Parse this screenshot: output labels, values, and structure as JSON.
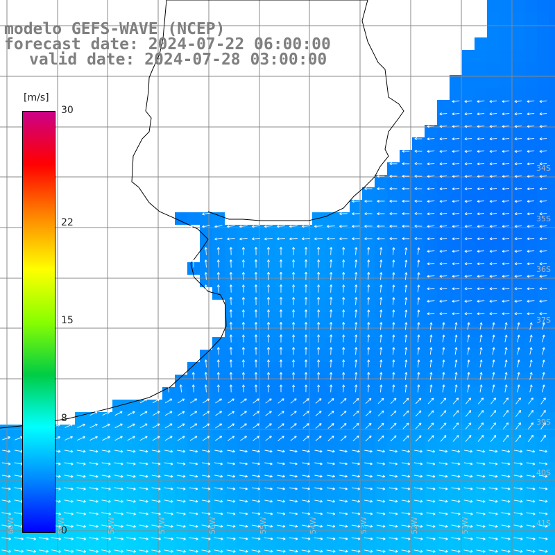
{
  "header": {
    "model": "modelo GEFS-WAVE (NCEP)",
    "forecast": "forecast date: 2024-07-22 06:00:00",
    "valid": "valid date: 2024-07-28 03:00:00"
  },
  "colorbar": {
    "unit": "[m/s]",
    "min": 0,
    "max": 30,
    "ticks": [
      "30",
      "22",
      "15",
      "8",
      "0"
    ],
    "tick_values": [
      30,
      22,
      15,
      8,
      0
    ],
    "colors": [
      "#0000ff",
      "#0088ff",
      "#00ffff",
      "#00cc44",
      "#88ff00",
      "#ffff00",
      "#ff8800",
      "#ff0000",
      "#cc0088"
    ]
  },
  "map": {
    "latitude_labels": [
      "34S",
      "35S",
      "36S",
      "37S",
      "39S",
      "40S",
      "41S"
    ],
    "longitude_labels": [
      "60W",
      "59W",
      "58W",
      "57W",
      "56W",
      "55W",
      "54W",
      "53W",
      "52W",
      "51W"
    ],
    "land_color": "#ffffff",
    "grid_color": "#888888",
    "coast_color": "#000000"
  }
}
